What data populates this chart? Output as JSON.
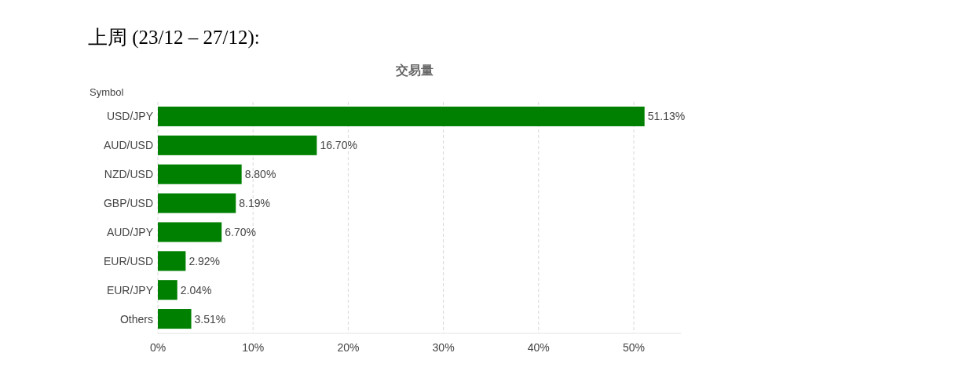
{
  "chart_data": {
    "type": "bar",
    "orientation": "horizontal",
    "title": "上周 (23/12 – 27/12):",
    "subtitle": "交易量",
    "ylabel": "Symbol",
    "categories": [
      "USD/JPY",
      "AUD/USD",
      "NZD/USD",
      "GBP/USD",
      "AUD/JPY",
      "EUR/USD",
      "EUR/JPY",
      "Others"
    ],
    "values": [
      51.13,
      16.7,
      8.8,
      8.19,
      6.7,
      2.92,
      2.04,
      3.51
    ],
    "value_labels": [
      "51.13%",
      "16.70%",
      "8.80%",
      "8.19%",
      "6.70%",
      "2.92%",
      "2.04%",
      "3.51%"
    ],
    "color": "#008000",
    "xlim": [
      0,
      55
    ],
    "xticks": [
      {
        "value": 0,
        "label": "0%"
      },
      {
        "value": 10,
        "label": "10%"
      },
      {
        "value": 20,
        "label": "20%"
      },
      {
        "value": 30,
        "label": "30%"
      },
      {
        "value": 40,
        "label": "40%"
      },
      {
        "value": 50,
        "label": "50%"
      }
    ],
    "grid": "x"
  }
}
